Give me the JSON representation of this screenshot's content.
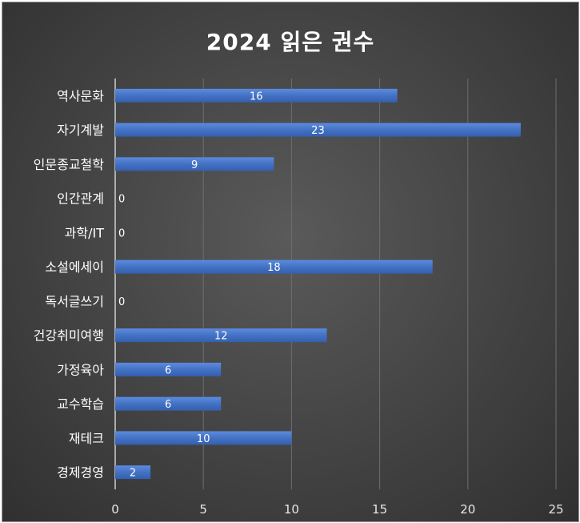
{
  "chart_data": {
    "type": "bar",
    "orientation": "horizontal",
    "title": "2024 읽은 권수",
    "categories": [
      "역사문화",
      "자기계발",
      "인문종교철학",
      "인간관계",
      "과학/IT",
      "소설에세이",
      "독서글쓰기",
      "건강취미여행",
      "가정육아",
      "교수학습",
      "재테크",
      "경제경영"
    ],
    "values": [
      16,
      23,
      9,
      0,
      0,
      18,
      0,
      12,
      6,
      6,
      10,
      2
    ],
    "xlim": [
      0,
      25
    ],
    "xticks": [
      "0",
      "5",
      "10",
      "15",
      "20",
      "25"
    ],
    "grid": true,
    "legend": "none",
    "bar_color": "#4472c4",
    "data_labels": true
  }
}
